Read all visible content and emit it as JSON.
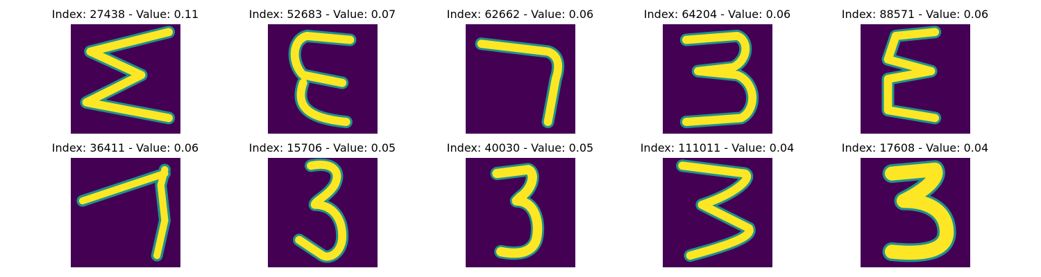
{
  "chart_data": {
    "type": "image_grid",
    "colormap": "viridis",
    "background_color": "#440154",
    "stroke_color": "#fde725",
    "edge_color": "#21918c",
    "grid": {
      "rows": 2,
      "cols": 5
    },
    "items": [
      {
        "title": "Index: 27438 - Value: 0.11",
        "index": 27438,
        "value": 0.11,
        "glyph": "Σ-like"
      },
      {
        "title": "Index: 52683 - Value: 0.07",
        "index": 52683,
        "value": 0.07,
        "glyph": "ε-like"
      },
      {
        "title": "Index: 62662 - Value: 0.06",
        "index": 62662,
        "value": 0.06,
        "glyph": "7-like"
      },
      {
        "title": "Index: 64204 - Value: 0.06",
        "index": 64204,
        "value": 0.06,
        "glyph": "3"
      },
      {
        "title": "Index: 88571 - Value: 0.06",
        "index": 88571,
        "value": 0.06,
        "glyph": "ε-like"
      },
      {
        "title": "Index: 36411 - Value: 0.06",
        "index": 36411,
        "value": 0.06,
        "glyph": "7-like"
      },
      {
        "title": "Index: 15706 - Value: 0.05",
        "index": 15706,
        "value": 0.05,
        "glyph": "3"
      },
      {
        "title": "Index: 40030 - Value: 0.05",
        "index": 40030,
        "value": 0.05,
        "glyph": "3"
      },
      {
        "title": "Index: 111011 - Value: 0.04",
        "index": 111011,
        "value": 0.04,
        "glyph": "3"
      },
      {
        "title": "Index: 17608 - Value: 0.04",
        "index": 17608,
        "value": 0.04,
        "glyph": "3"
      }
    ]
  }
}
